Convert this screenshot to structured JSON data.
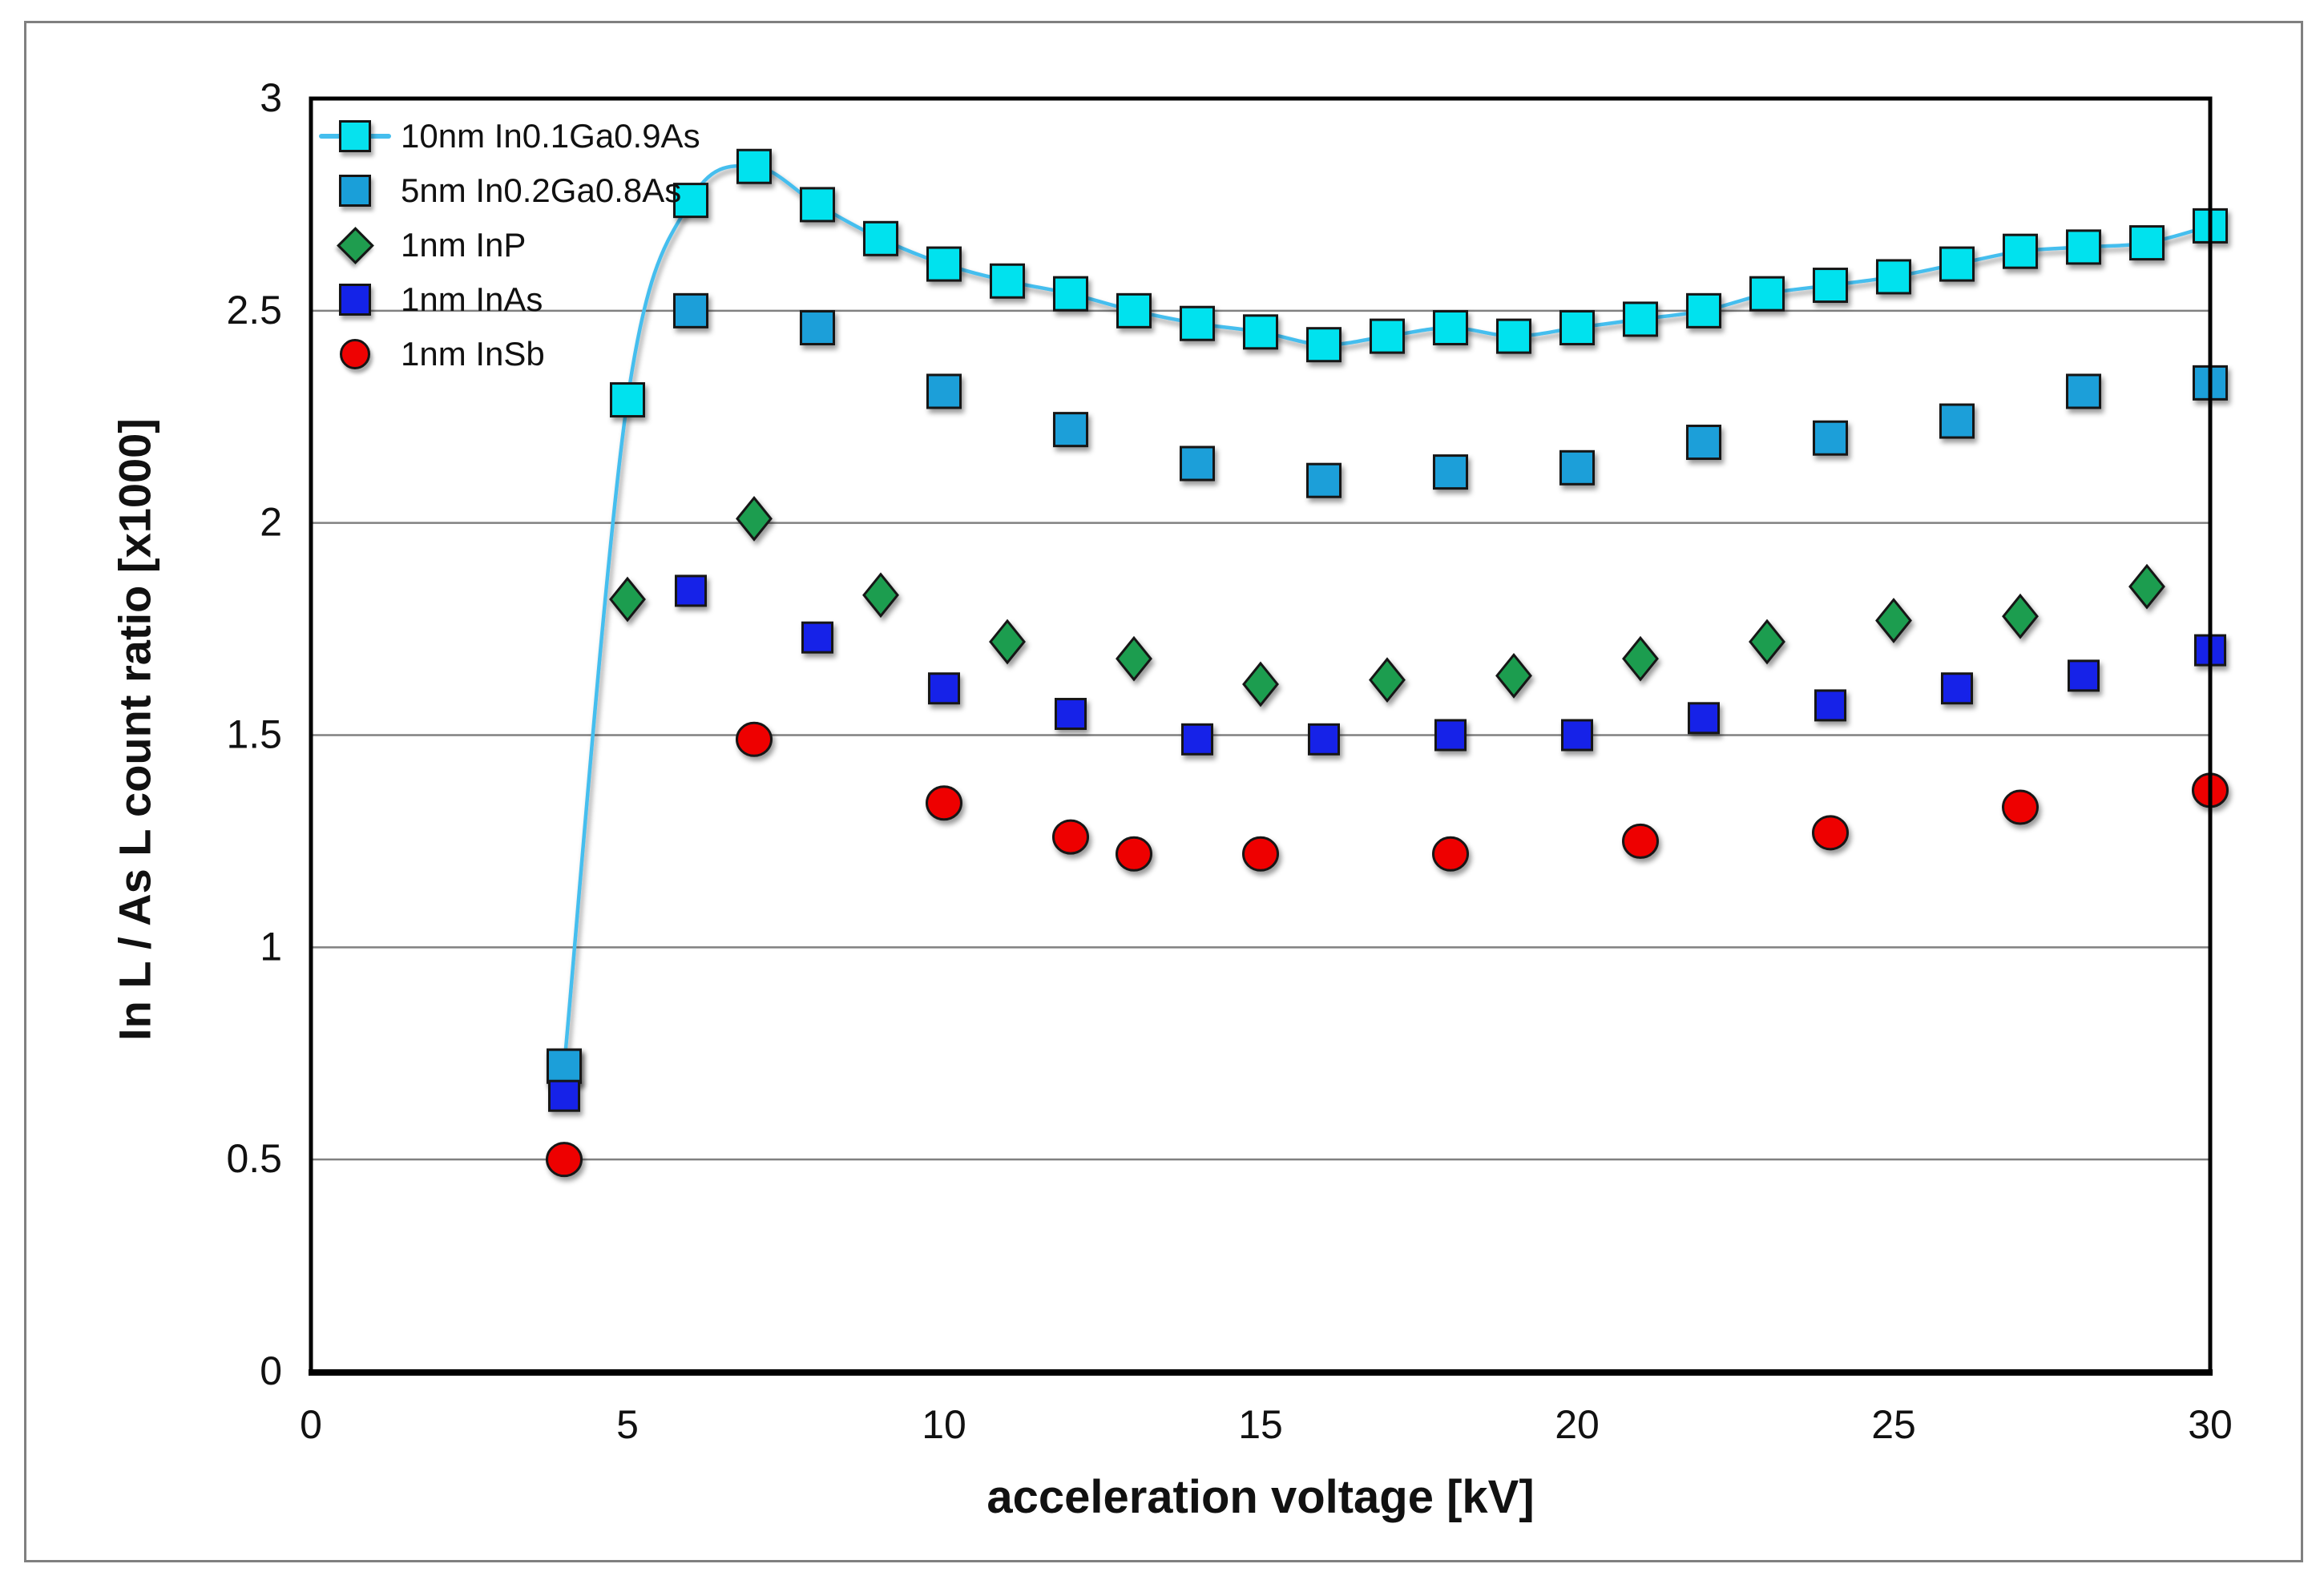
{
  "figure": {
    "background_color": "#ffffff",
    "border_color": "#808080"
  },
  "chart_data": {
    "type": "scatter",
    "title": "",
    "xlabel": "acceleration voltage [kV]",
    "ylabel": "In L / As L count ratio [x1000]",
    "xlim": [
      0,
      30
    ],
    "ylim": [
      0,
      3
    ],
    "x_ticks": [
      {
        "v": 0,
        "label": "0"
      },
      {
        "v": 5,
        "label": "5"
      },
      {
        "v": 10,
        "label": "10"
      },
      {
        "v": 15,
        "label": "15"
      },
      {
        "v": 20,
        "label": "20"
      },
      {
        "v": 25,
        "label": "25"
      },
      {
        "v": 30,
        "label": "30"
      }
    ],
    "y_ticks": [
      {
        "v": 0,
        "label": "0"
      },
      {
        "v": 0.5,
        "label": "0.5"
      },
      {
        "v": 1,
        "label": "1"
      },
      {
        "v": 1.5,
        "label": "1.5"
      },
      {
        "v": 2,
        "label": "2"
      },
      {
        "v": 2.5,
        "label": "2.5"
      },
      {
        "v": 3,
        "label": "3"
      }
    ],
    "grid": "horizontal-only",
    "gridline_color": "#808080",
    "axis_box_color": "#000000",
    "tick_label_color": "#111111",
    "legend_position": "top-left-inside",
    "series": [
      {
        "name": "10nm In0.1Ga0.9As",
        "marker": "square",
        "marker_color": "#06E2EE",
        "marker_edge": "#151515",
        "line": true,
        "line_color": "#45BEEE",
        "x": [
          4,
          5,
          6,
          7,
          8,
          9,
          10,
          11,
          12,
          13,
          14,
          15,
          16,
          17,
          18,
          19,
          20,
          21,
          22,
          23,
          24,
          25,
          26,
          27,
          28,
          29,
          30
        ],
        "values": [
          0.72,
          2.29,
          2.76,
          2.84,
          2.75,
          2.67,
          2.61,
          2.57,
          2.54,
          2.5,
          2.47,
          2.45,
          2.42,
          2.44,
          2.46,
          2.44,
          2.46,
          2.48,
          2.5,
          2.54,
          2.56,
          2.58,
          2.61,
          2.64,
          2.65,
          2.66,
          2.7
        ]
      },
      {
        "name": "5nm In0.2Ga0.8As",
        "marker": "square",
        "marker_color": "#1A9FD9",
        "marker_edge": "#151515",
        "line": false,
        "x": [
          4,
          6,
          8,
          10,
          12,
          14,
          16,
          18,
          20,
          22,
          24,
          26,
          28,
          30
        ],
        "values": [
          0.72,
          2.5,
          2.46,
          2.31,
          2.22,
          2.14,
          2.1,
          2.12,
          2.13,
          2.19,
          2.2,
          2.24,
          2.31,
          2.33
        ]
      },
      {
        "name": "1nm InP",
        "marker": "diamond",
        "marker_color": "#1F9D4F",
        "marker_edge": "#151515",
        "line": false,
        "x": [
          5,
          7,
          9,
          11,
          13,
          15,
          17,
          19,
          21,
          23,
          25,
          27,
          29
        ],
        "values": [
          1.82,
          2.01,
          1.83,
          1.72,
          1.68,
          1.62,
          1.63,
          1.64,
          1.68,
          1.72,
          1.77,
          1.78,
          1.85
        ]
      },
      {
        "name": "1nm InAs",
        "marker": "square",
        "marker_color": "#1423E8",
        "marker_edge": "#151515",
        "line": false,
        "x": [
          4,
          6,
          8,
          10,
          12,
          14,
          16,
          18,
          20,
          22,
          24,
          26,
          28,
          30
        ],
        "values": [
          0.65,
          1.84,
          1.73,
          1.61,
          1.55,
          1.49,
          1.49,
          1.5,
          1.5,
          1.54,
          1.57,
          1.61,
          1.64,
          1.7
        ]
      },
      {
        "name": "1nm InSb",
        "marker": "circle",
        "marker_color": "#EE0202",
        "marker_edge": "#151515",
        "line": false,
        "x": [
          4,
          7,
          10,
          12,
          13,
          15,
          18,
          21,
          24,
          27,
          30
        ],
        "values": [
          0.5,
          1.49,
          1.34,
          1.26,
          1.22,
          1.22,
          1.22,
          1.25,
          1.27,
          1.33,
          1.37
        ]
      }
    ]
  }
}
